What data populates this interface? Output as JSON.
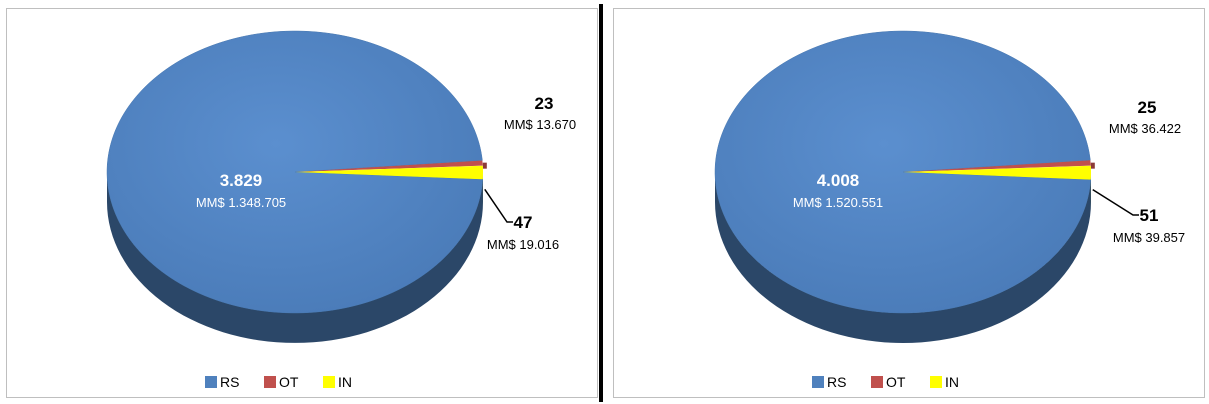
{
  "chart_data": [
    {
      "type": "pie",
      "style": "3d",
      "legend_position": "bottom",
      "slices": [
        {
          "key": "RS",
          "legend": "RS",
          "count": 3829,
          "count_label": "3.829",
          "amount_label": "MM$  1.348.705",
          "amount": 1348705,
          "color": "#4f81bd"
        },
        {
          "key": "OT",
          "legend": "OT",
          "count": 23,
          "count_label": "23",
          "amount_label": "MM$ 13.670",
          "amount": 13670,
          "color": "#c0504d"
        },
        {
          "key": "IN",
          "legend": "IN",
          "count": 47,
          "count_label": "47",
          "amount_label": "MM$ 19.016",
          "amount": 19016,
          "color": "#ffff00"
        }
      ]
    },
    {
      "type": "pie",
      "style": "3d",
      "legend_position": "bottom",
      "slices": [
        {
          "key": "RS",
          "legend": "RS",
          "count": 4008,
          "count_label": "4.008",
          "amount_label": "MM$ 1.520.551",
          "amount": 1520551,
          "color": "#4f81bd"
        },
        {
          "key": "OT",
          "legend": "OT",
          "count": 25,
          "count_label": "25",
          "amount_label": "MM$ 36.422",
          "amount": 36422,
          "color": "#c0504d"
        },
        {
          "key": "IN",
          "legend": "IN",
          "count": 51,
          "count_label": "51",
          "amount_label": "MM$ 39.857",
          "amount": 39857,
          "color": "#ffff00"
        }
      ]
    }
  ]
}
